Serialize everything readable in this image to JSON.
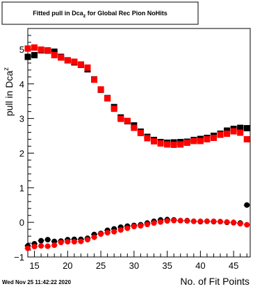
{
  "chart_data": {
    "type": "scatter",
    "title": "Fitted pull in Dca",
    "title_subscript": "z",
    "title_suffix": " for Global Rec Pion NoHits",
    "xlabel": "No. of Fit Points",
    "ylabel": "pull in Dca",
    "ylabel_subscript": "z",
    "xlim": [
      14,
      47.5
    ],
    "ylim": [
      -1,
      5.6
    ],
    "xticks": [
      15,
      20,
      25,
      30,
      35,
      40,
      45
    ],
    "yticks": [
      -1,
      0,
      1,
      2,
      3,
      4,
      5
    ],
    "grid": false,
    "legend": "none",
    "timestamp": "Wed Nov 25 11:42:22 2020",
    "series": [
      {
        "marker": "square",
        "color": "#000000",
        "x": [
          14,
          15,
          16,
          17,
          18,
          19,
          20,
          21,
          22,
          23,
          24,
          25,
          26,
          27,
          28,
          29,
          30,
          31,
          32,
          33,
          34,
          35,
          36,
          37,
          38,
          39,
          40,
          41,
          42,
          43,
          44,
          45,
          46,
          47
        ],
        "y": [
          4.78,
          4.83,
          4.97,
          4.96,
          4.93,
          4.78,
          4.68,
          4.62,
          4.55,
          4.42,
          4.13,
          3.83,
          3.59,
          3.33,
          3.03,
          2.92,
          2.8,
          2.62,
          2.47,
          2.38,
          2.32,
          2.3,
          2.31,
          2.32,
          2.33,
          2.38,
          2.41,
          2.44,
          2.5,
          2.56,
          2.65,
          2.7,
          2.73,
          2.72
        ]
      },
      {
        "marker": "square",
        "color": "#ff0000",
        "x": [
          14,
          15,
          16,
          17,
          18,
          19,
          20,
          21,
          22,
          23,
          24,
          25,
          26,
          27,
          28,
          29,
          30,
          31,
          32,
          33,
          34,
          35,
          36,
          37,
          38,
          39,
          40,
          41,
          42,
          43,
          44,
          45,
          46,
          47
        ],
        "y": [
          5.02,
          5.05,
          4.99,
          4.97,
          4.83,
          4.76,
          4.68,
          4.64,
          4.56,
          4.47,
          4.12,
          3.84,
          3.58,
          3.28,
          2.99,
          2.93,
          2.73,
          2.58,
          2.43,
          2.34,
          2.28,
          2.25,
          2.24,
          2.25,
          2.3,
          2.35,
          2.35,
          2.4,
          2.44,
          2.53,
          2.56,
          2.63,
          2.59,
          2.4
        ]
      },
      {
        "marker": "circle",
        "color": "#000000",
        "x": [
          14,
          15,
          16,
          17,
          18,
          19,
          20,
          21,
          22,
          23,
          24,
          25,
          26,
          27,
          28,
          29,
          30,
          31,
          32,
          33,
          34,
          35,
          36,
          37,
          38,
          39,
          40,
          41,
          42,
          43,
          44,
          45,
          46,
          47
        ],
        "y": [
          -0.68,
          -0.62,
          -0.53,
          -0.5,
          -0.55,
          -0.54,
          -0.5,
          -0.49,
          -0.49,
          -0.46,
          -0.35,
          -0.32,
          -0.23,
          -0.19,
          -0.14,
          -0.11,
          -0.09,
          -0.07,
          -0.02,
          0.03,
          0.07,
          0.08,
          0.07,
          0.05,
          0.05,
          0.03,
          0.02,
          0.03,
          0.02,
          0.02,
          0.0,
          -0.01,
          -0.02,
          0.5
        ]
      },
      {
        "marker": "circle",
        "color": "#ff0000",
        "x": [
          14,
          15,
          16,
          17,
          18,
          19,
          20,
          21,
          22,
          23,
          24,
          25,
          26,
          27,
          28,
          29,
          30,
          31,
          32,
          33,
          34,
          35,
          36,
          37,
          38,
          39,
          40,
          41,
          42,
          43,
          44,
          45,
          46,
          47
        ],
        "y": [
          -0.75,
          -0.7,
          -0.68,
          -0.69,
          -0.66,
          -0.58,
          -0.56,
          -0.56,
          -0.55,
          -0.5,
          -0.43,
          -0.34,
          -0.3,
          -0.27,
          -0.22,
          -0.17,
          -0.12,
          -0.1,
          -0.06,
          -0.02,
          0.01,
          0.04,
          0.05,
          0.05,
          0.04,
          0.03,
          0.03,
          0.03,
          0.03,
          0.02,
          0.01,
          0.0,
          -0.04,
          -0.07
        ]
      }
    ]
  }
}
